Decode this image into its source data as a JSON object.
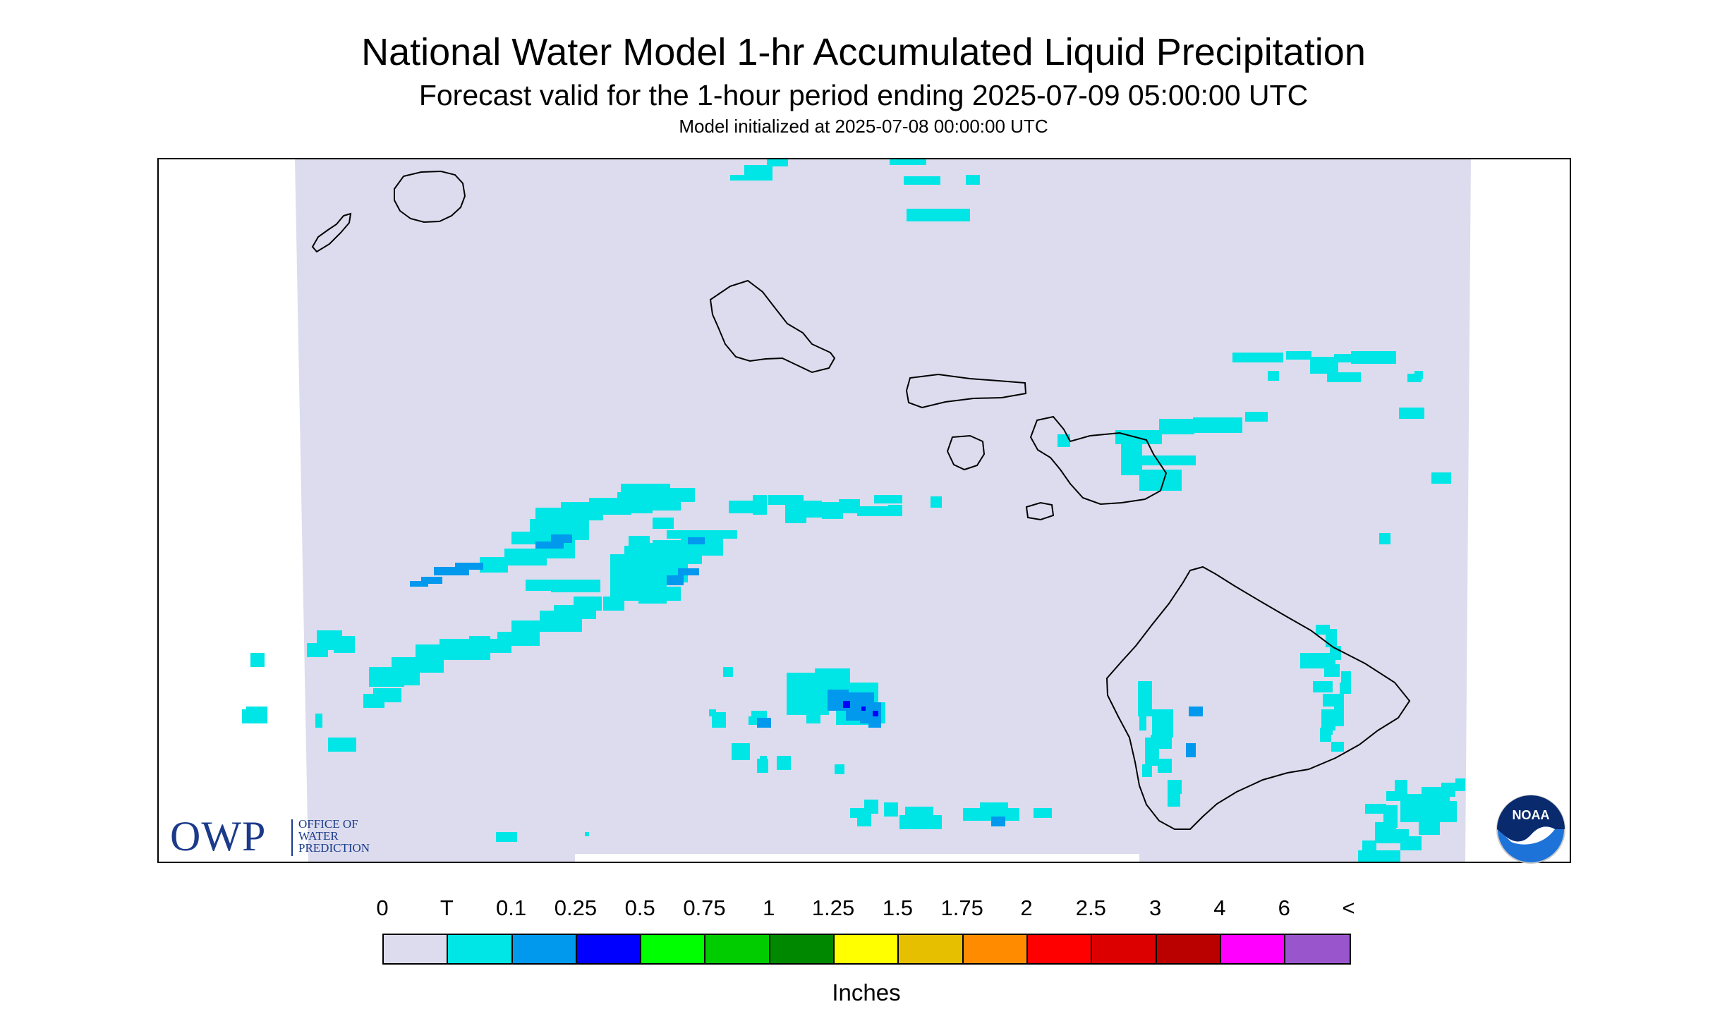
{
  "header": {
    "title": "National Water Model 1-hr Accumulated Liquid Precipitation",
    "subtitle": "Forecast valid for the 1-hour period ending 2025-07-09 05:00:00 UTC",
    "init": "Model initialized at 2025-07-08 00:00:00 UTC"
  },
  "legend": {
    "labels": [
      "0",
      "T",
      "0.1",
      "0.25",
      "0.5",
      "0.75",
      "1",
      "1.25",
      "1.5",
      "1.75",
      "2",
      "2.5",
      "3",
      "4",
      "6",
      "<"
    ],
    "colors": [
      "#dcdcee",
      "#00e5e5",
      "#0099ee",
      "#0000ff",
      "#00ff00",
      "#00cc00",
      "#008800",
      "#ffff00",
      "#e5bf00",
      "#ff8c00",
      "#ff0000",
      "#dd0000",
      "#bb0000",
      "#ff00ff",
      "#9955cc"
    ],
    "unit": "Inches"
  },
  "logos": {
    "owp_letters": "OWP",
    "owp_text": [
      "OFFICE OF",
      "WATER",
      "PREDICTION"
    ],
    "noaa_text": "NOAA"
  },
  "map": {
    "background_color": "#dcdcee",
    "precip_colors": {
      "trace": "#00e5e5",
      "light": "#0099ee",
      "heavy": "#0000ff"
    }
  }
}
